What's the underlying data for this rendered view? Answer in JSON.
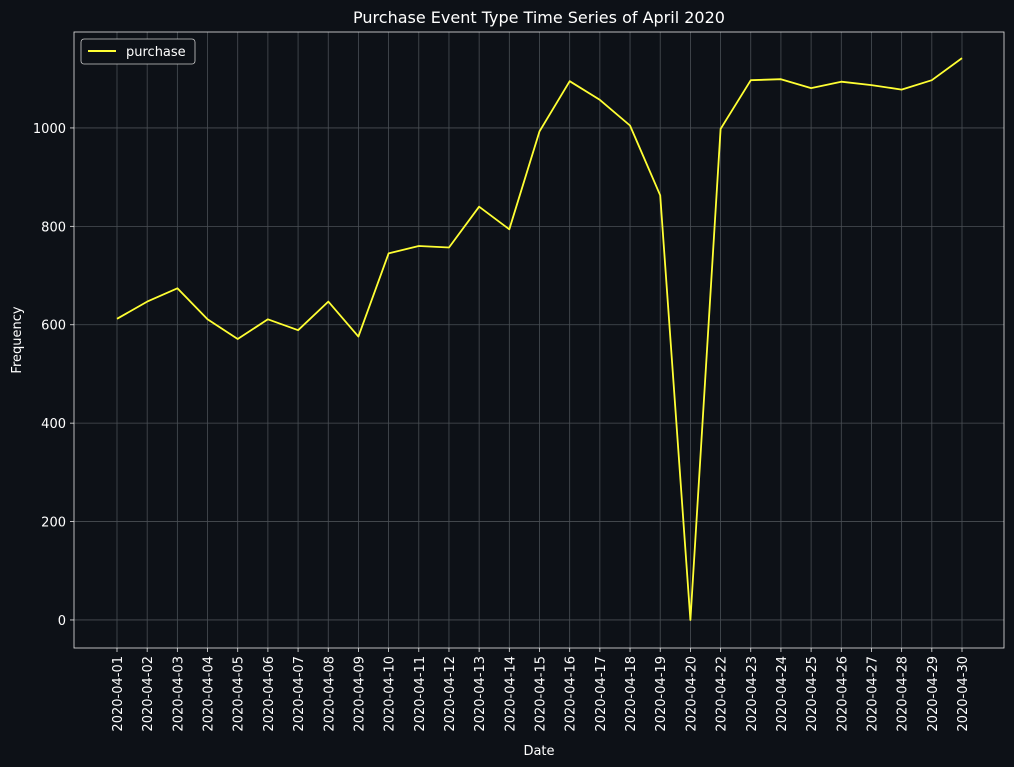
{
  "chart_data": {
    "type": "line",
    "title": "Purchase Event Type Time Series of April 2020",
    "xlabel": "Date",
    "ylabel": "Frequency",
    "grid": true,
    "legend_position": "top-left",
    "background_color": "#0d1117",
    "line_color": "#ffff33",
    "grid_color": "#4a4f55",
    "ylim": [
      -57,
      1195
    ],
    "yticks": [
      0,
      200,
      400,
      600,
      800,
      1000
    ],
    "x": [
      "2020-04-01",
      "2020-04-02",
      "2020-04-03",
      "2020-04-04",
      "2020-04-05",
      "2020-04-06",
      "2020-04-07",
      "2020-04-08",
      "2020-04-09",
      "2020-04-10",
      "2020-04-11",
      "2020-04-12",
      "2020-04-13",
      "2020-04-14",
      "2020-04-15",
      "2020-04-16",
      "2020-04-17",
      "2020-04-18",
      "2020-04-19",
      "2020-04-20",
      "2020-04-22",
      "2020-04-23",
      "2020-04-24",
      "2020-04-25",
      "2020-04-26",
      "2020-04-27",
      "2020-04-28",
      "2020-04-29",
      "2020-04-30"
    ],
    "series": [
      {
        "name": "purchase",
        "values": [
          612,
          647,
          674,
          611,
          571,
          611,
          589,
          647,
          576,
          745,
          760,
          757,
          840,
          794,
          993,
          1095,
          1057,
          1005,
          863,
          0,
          998,
          1097,
          1099,
          1081,
          1094,
          1087,
          1078,
          1097,
          1142
        ]
      }
    ]
  }
}
